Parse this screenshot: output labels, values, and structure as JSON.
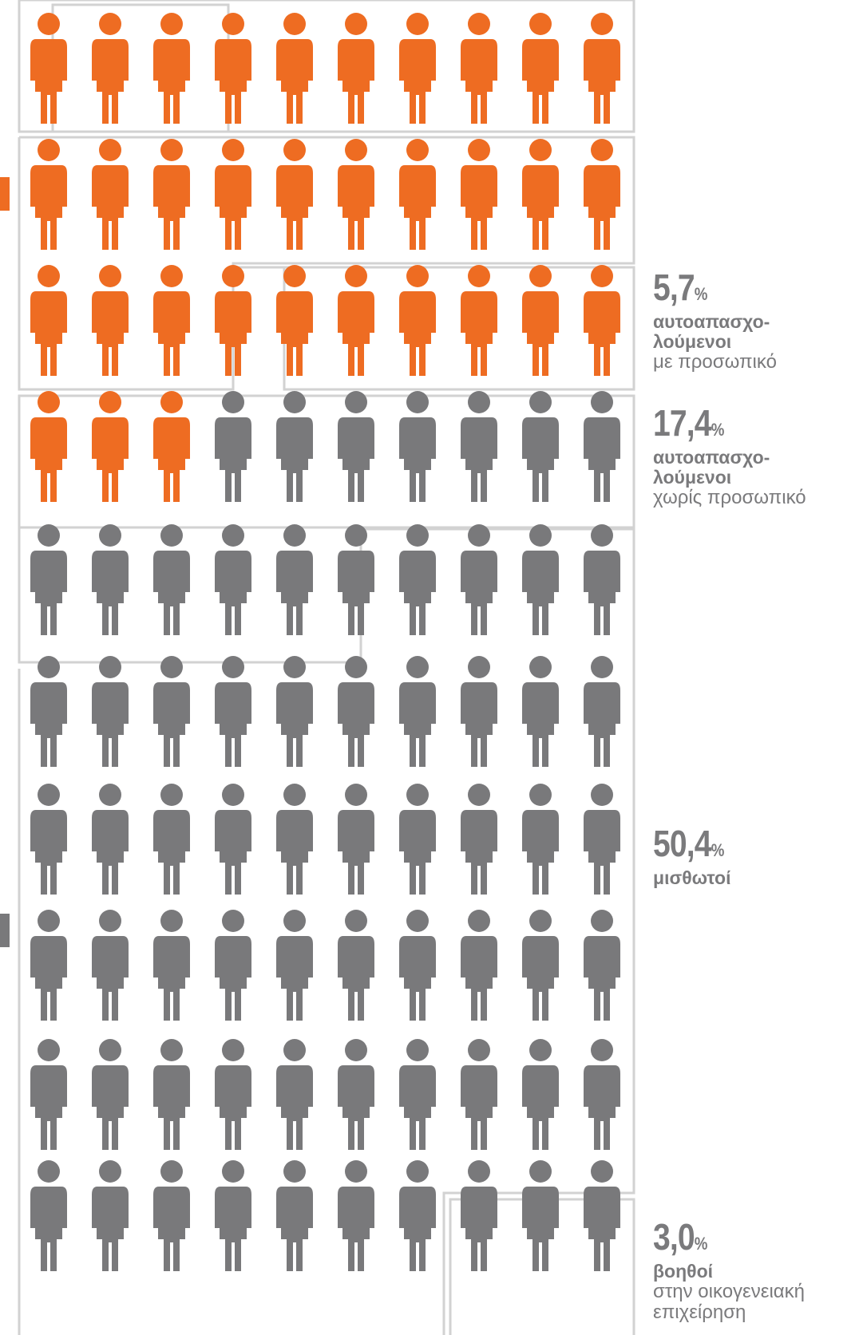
{
  "colors": {
    "orange": "#ee6c22",
    "gray": "#79797b",
    "border": "#d2d2d2",
    "text": "#7a7a7c"
  },
  "chart_data": {
    "type": "pictogram",
    "rows": 11,
    "columns": 10,
    "orange_count": 33,
    "categories": [
      {
        "percent_value": "5,7",
        "percent_unit": "%",
        "bold": "αυτοαπασχο-\nλούμενοι",
        "regular": "με προσωπικό",
        "value": 5.7
      },
      {
        "percent_value": "17,4",
        "percent_unit": "%",
        "bold": "αυτοαπασχο-\nλούμενοι",
        "regular": "χωρίς προσωπικό",
        "value": 17.4
      },
      {
        "percent_value": "50,4",
        "percent_unit": "%",
        "bold": "μισθωτοί",
        "regular": "",
        "value": 50.4
      },
      {
        "percent_value": "3,0",
        "percent_unit": "%",
        "bold": "βοηθοί",
        "regular": "στην οικογενειακή\nεπιχείρηση",
        "value": 3.0
      }
    ]
  }
}
